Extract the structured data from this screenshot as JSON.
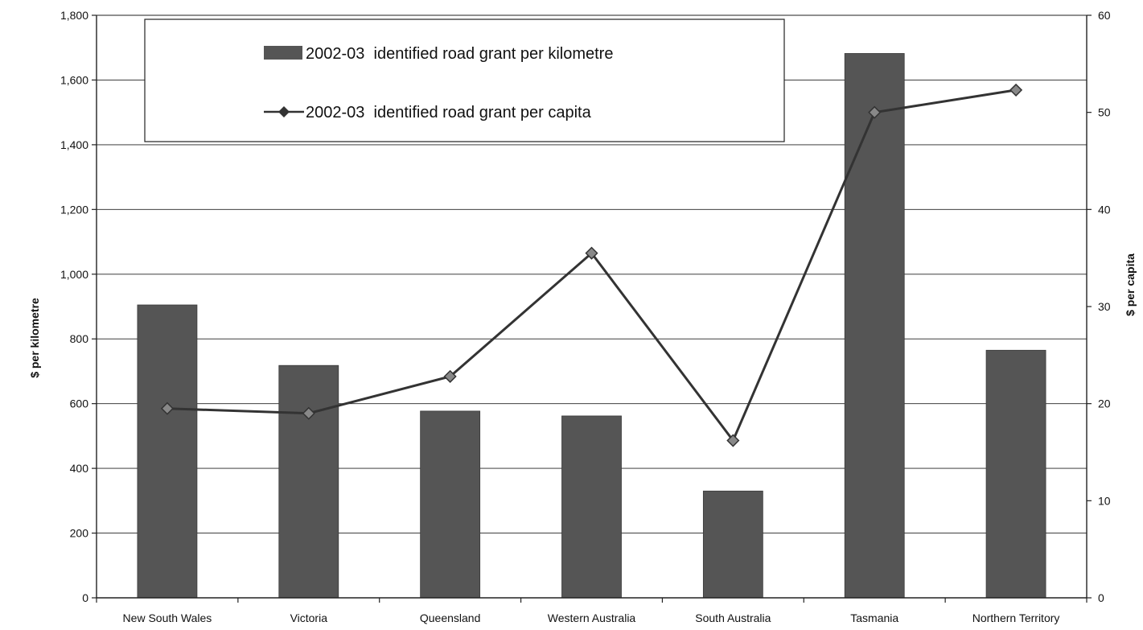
{
  "chart_data": {
    "type": "bar",
    "categories": [
      "New South Wales",
      "Victoria",
      "Queensland",
      "Western Australia",
      "South Australia",
      "Tasmania",
      "Northern Territory"
    ],
    "series": [
      {
        "name": "2002-03  identified road grant per kilometre",
        "type": "bar",
        "axis": "left",
        "values": [
          905,
          718,
          577,
          562,
          330,
          1682,
          765
        ]
      },
      {
        "name": "2002-03  identified road grant per capita",
        "type": "line",
        "marker": "diamond",
        "axis": "right",
        "values": [
          19.5,
          19.0,
          22.8,
          35.5,
          16.2,
          50.0,
          52.3
        ]
      }
    ],
    "ylabel": "$ per kilometre",
    "y2label": "$ per capita",
    "ylim": [
      0,
      1800
    ],
    "y2lim": [
      0,
      60
    ],
    "yticks": [
      "0",
      "200",
      "400",
      "600",
      "800",
      "1,000",
      "1,200",
      "1,400",
      "1,600",
      "1,800"
    ],
    "y2ticks": [
      "0",
      "10",
      "20",
      "30",
      "40",
      "50",
      "60"
    ],
    "grid": true,
    "legend": "top-left",
    "colors": {
      "bar": "#555555",
      "line": "#333333",
      "grid": "#222222",
      "axis": "#222222"
    }
  }
}
